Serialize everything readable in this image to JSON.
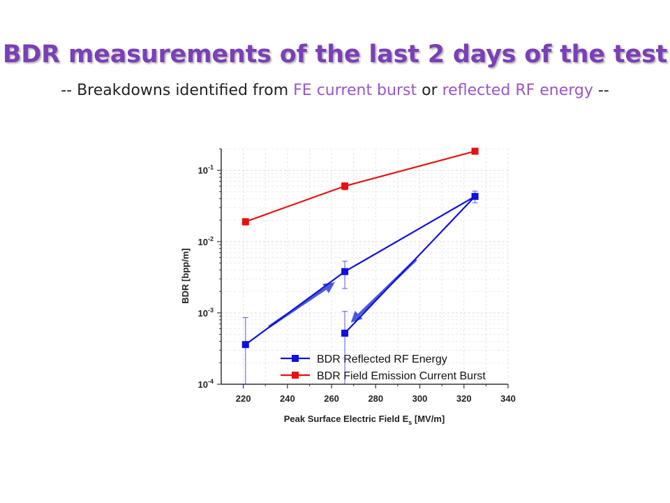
{
  "slide": {
    "title": "BDR measurements of the last 2 days of the test",
    "subtitle": {
      "prefix": "-- Breakdowns identified from ",
      "highlight1": "FE current burst",
      "middle": " or ",
      "highlight2": "reflected RF energy",
      "suffix": " --"
    }
  },
  "colors": {
    "title": "#7b3fb6",
    "highlight": "#9a55c8",
    "reflected": "#1010e0",
    "field_emission": "#e81010",
    "arrow": "#4a5ad8"
  },
  "chart_data": {
    "type": "line",
    "xlabel": "Peak Surface Electric Field E",
    "xlabel_sub": "s",
    "xlabel_unit": " [MV/m]",
    "ylabel": "BDR [bpp/m]",
    "xlim": [
      210,
      340
    ],
    "ylim": [
      0.0001,
      0.2
    ],
    "yscale": "log",
    "grid": true,
    "x_ticks": [
      "220",
      "240",
      "260",
      "280",
      "300",
      "320",
      "340"
    ],
    "y_ticks": [
      {
        "base": "10",
        "exp": "-1",
        "value": 0.1
      },
      {
        "base": "10",
        "exp": "-2",
        "value": 0.01
      },
      {
        "base": "10",
        "exp": "-3",
        "value": 0.001
      },
      {
        "base": "10",
        "exp": "-4",
        "value": 0.0001
      }
    ],
    "legend_position": "bottom-right",
    "series": [
      {
        "name": "BDR Reflected RF Energy",
        "color_key": "reflected",
        "x": [
          221,
          266,
          325,
          266
        ],
        "y": [
          0.00036,
          0.0038,
          0.043,
          0.00052
        ],
        "err_low": [
          0.00026,
          0.0016,
          0.008,
          0.00042
        ],
        "err_high": [
          0.0005,
          0.0015,
          0.008,
          0.00053
        ]
      },
      {
        "name": "BDR Field Emission Current Burst",
        "color_key": "field_emission",
        "x": [
          221,
          266,
          325
        ],
        "y": [
          0.019,
          0.06,
          0.185
        ],
        "err_low": [
          0.002,
          0.007,
          0.018
        ],
        "err_high": [
          0.002,
          0.007,
          0.018
        ]
      }
    ],
    "annotations": [
      {
        "type": "arrow",
        "from": [
          232,
          0.00065
        ],
        "to": [
          260,
          0.0025
        ]
      },
      {
        "type": "arrow",
        "from": [
          298,
          0.0055
        ],
        "to": [
          270,
          0.0008
        ]
      }
    ]
  }
}
